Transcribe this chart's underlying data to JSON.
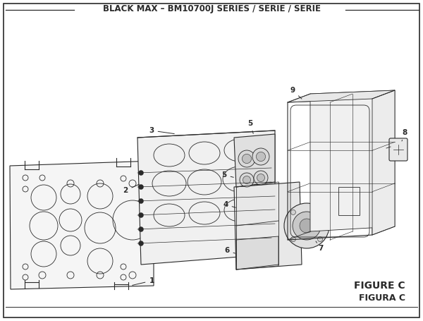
{
  "title": "BLACK MAX – BM10700J SERIES / SÉRIE / SERIE",
  "figure_label": "FIGURE C",
  "figura_label": "FIGURA C",
  "bg_color": "#ffffff",
  "line_color": "#2a2a2a",
  "border_color": "#2a2a2a",
  "title_fontsize": 8.5,
  "figure_label_fontsize": 10
}
